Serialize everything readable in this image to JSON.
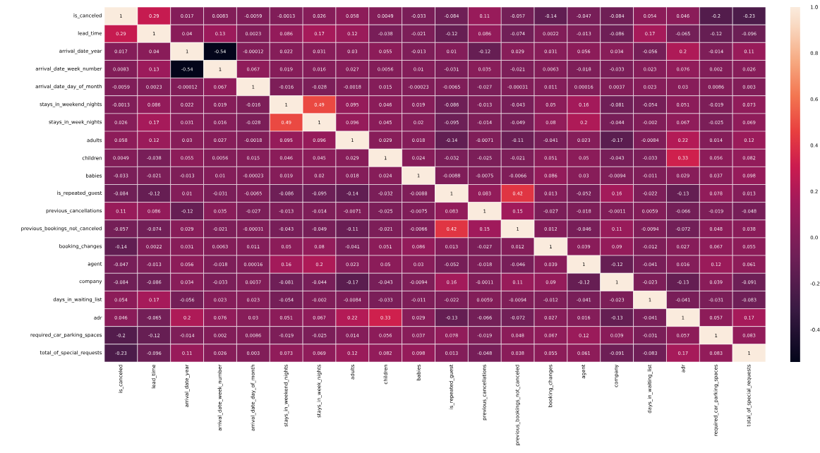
{
  "chart_data": {
    "type": "heatmap",
    "data_labels": true,
    "categories": [
      "is_canceled",
      "lead_time",
      "arrival_date_year",
      "arrival_date_week_number",
      "arrival_date_day_of_month",
      "stays_in_weekend_nights",
      "stays_in_week_nights",
      "adults",
      "children",
      "babies",
      "is_repeated_guest",
      "previous_cancellations",
      "previous_bookings_not_canceled",
      "booking_changes",
      "agent",
      "company",
      "days_in_waiting_list",
      "adr",
      "required_car_parking_spaces",
      "total_of_special_requests"
    ],
    "y_categories": [
      "is_canceled",
      "lead_time",
      "arrival_date_year",
      "arrival_date_week_number",
      "arrival_date_day_of_month",
      "stays_in_weekend_nights",
      "stays_in_week_nights",
      "adults",
      "children",
      "babies",
      "is_repeated_guest",
      "previous_cancellations",
      "previous_bookings_not_canceled",
      "booking_changes",
      "agent",
      "company",
      "days_in_waiting_list",
      "adr",
      "required_car_parking_spaces",
      "total_of_special_requests"
    ],
    "cells": [
      [
        1,
        0.29,
        0.017,
        0.0083,
        -0.0059,
        -0.0013,
        0.026,
        0.058,
        0.0049,
        -0.033,
        -0.084,
        0.11,
        -0.057,
        -0.14,
        -0.047,
        -0.084,
        0.054,
        0.046,
        -0.2,
        -0.23
      ],
      [
        0.29,
        1,
        0.04,
        0.13,
        0.0023,
        0.086,
        0.17,
        0.12,
        -0.038,
        -0.021,
        -0.12,
        0.086,
        -0.074,
        0.0022,
        -0.013,
        -0.086,
        0.17,
        -0.065,
        -0.12,
        -0.096
      ],
      [
        0.017,
        0.04,
        1,
        -0.54,
        -0.00012,
        0.022,
        0.031,
        0.03,
        0.055,
        -0.013,
        0.01,
        -0.12,
        0.029,
        0.031,
        0.056,
        0.034,
        -0.056,
        0.2,
        -0.014,
        0.11
      ],
      [
        0.0083,
        0.13,
        -0.54,
        1,
        0.067,
        0.019,
        0.016,
        0.027,
        0.0056,
        0.01,
        -0.031,
        0.035,
        -0.021,
        0.0063,
        -0.018,
        -0.033,
        0.023,
        0.076,
        0.002,
        0.026
      ],
      [
        -0.0059,
        0.0023,
        -0.00012,
        0.067,
        1,
        -0.016,
        -0.028,
        -0.0018,
        0.015,
        -0.00023,
        -0.0065,
        -0.027,
        -0.00031,
        0.011,
        0.00016,
        0.0037,
        0.023,
        0.03,
        0.0086,
        0.003
      ],
      [
        -0.0013,
        0.086,
        0.022,
        0.019,
        -0.016,
        1,
        0.49,
        0.095,
        0.046,
        0.019,
        -0.086,
        -0.013,
        -0.043,
        0.05,
        0.16,
        -0.081,
        -0.054,
        0.051,
        -0.019,
        0.073
      ],
      [
        0.026,
        0.17,
        0.031,
        0.016,
        -0.028,
        0.49,
        1,
        0.096,
        0.045,
        0.02,
        -0.095,
        -0.014,
        -0.049,
        0.08,
        0.2,
        -0.044,
        -0.002,
        0.067,
        -0.025,
        0.069
      ],
      [
        0.058,
        0.12,
        0.03,
        0.027,
        -0.0018,
        0.095,
        0.096,
        1,
        0.029,
        0.018,
        -0.14,
        -0.0071,
        -0.11,
        -0.041,
        0.023,
        -0.17,
        -0.0084,
        0.22,
        0.014,
        0.12
      ],
      [
        0.0049,
        -0.038,
        0.055,
        0.0056,
        0.015,
        0.046,
        0.045,
        0.029,
        1,
        0.024,
        -0.032,
        -0.025,
        -0.021,
        0.051,
        0.05,
        -0.043,
        -0.033,
        0.33,
        0.056,
        0.082
      ],
      [
        -0.033,
        -0.021,
        -0.013,
        0.01,
        -0.00023,
        0.019,
        0.02,
        0.018,
        0.024,
        1,
        -0.0088,
        -0.0075,
        -0.0066,
        0.086,
        0.03,
        -0.0094,
        -0.011,
        0.029,
        0.037,
        0.098
      ],
      [
        -0.084,
        -0.12,
        0.01,
        -0.031,
        -0.0065,
        -0.086,
        -0.095,
        -0.14,
        -0.032,
        -0.0088,
        1,
        0.083,
        0.42,
        0.013,
        -0.052,
        0.16,
        -0.022,
        -0.13,
        0.078,
        0.013
      ],
      [
        0.11,
        0.086,
        -0.12,
        0.035,
        -0.027,
        -0.013,
        -0.014,
        -0.0071,
        -0.025,
        -0.0075,
        0.083,
        1,
        0.15,
        -0.027,
        -0.018,
        -0.0011,
        0.0059,
        -0.066,
        -0.019,
        -0.048
      ],
      [
        -0.057,
        -0.074,
        0.029,
        -0.021,
        -0.00031,
        -0.043,
        -0.049,
        -0.11,
        -0.021,
        -0.0066,
        0.42,
        0.15,
        1,
        0.012,
        -0.046,
        0.11,
        -0.0094,
        -0.072,
        0.048,
        0.038
      ],
      [
        -0.14,
        0.0022,
        0.031,
        0.0063,
        0.011,
        0.05,
        0.08,
        -0.041,
        0.051,
        0.086,
        0.013,
        -0.027,
        0.012,
        1,
        0.039,
        0.09,
        -0.012,
        0.027,
        0.067,
        0.055
      ],
      [
        -0.047,
        -0.013,
        0.056,
        -0.018,
        0.00016,
        0.16,
        0.2,
        0.023,
        0.05,
        0.03,
        -0.052,
        -0.018,
        -0.046,
        0.039,
        1,
        -0.12,
        -0.041,
        0.016,
        0.12,
        0.061
      ],
      [
        -0.084,
        -0.086,
        0.034,
        -0.033,
        0.0037,
        -0.081,
        -0.044,
        -0.17,
        -0.043,
        -0.0094,
        0.16,
        -0.0011,
        0.11,
        0.09,
        -0.12,
        1,
        -0.023,
        -0.13,
        0.039,
        -0.091
      ],
      [
        0.054,
        0.17,
        -0.056,
        0.023,
        0.023,
        -0.054,
        -0.002,
        -0.0084,
        -0.033,
        -0.011,
        -0.022,
        0.0059,
        -0.0094,
        -0.012,
        -0.041,
        -0.023,
        1,
        -0.041,
        -0.031,
        -0.083
      ],
      [
        0.046,
        -0.065,
        0.2,
        0.076,
        0.03,
        0.051,
        0.067,
        0.22,
        0.33,
        0.029,
        -0.13,
        -0.066,
        -0.072,
        0.027,
        0.016,
        -0.13,
        -0.041,
        1,
        0.057,
        0.17
      ],
      [
        -0.2,
        -0.12,
        -0.014,
        0.002,
        0.0086,
        -0.019,
        -0.025,
        0.014,
        0.056,
        0.037,
        0.078,
        -0.019,
        0.048,
        0.067,
        0.12,
        0.039,
        -0.031,
        0.057,
        1,
        0.083
      ],
      [
        -0.23,
        -0.096,
        0.11,
        0.026,
        0.003,
        0.073,
        0.069,
        0.12,
        0.082,
        0.098,
        0.013,
        -0.048,
        0.038,
        0.055,
        0.061,
        -0.091,
        -0.083,
        0.17,
        0.083,
        1
      ]
    ],
    "clim": [
      -0.54,
      1
    ],
    "cticks": [
      {
        "value": -0.4,
        "label": "-0.4"
      },
      {
        "value": -0.2,
        "label": "-0.2"
      },
      {
        "value": 0,
        "label": "0.0"
      },
      {
        "value": 0.2,
        "label": "0.2"
      },
      {
        "value": 0.4,
        "label": "0.4"
      },
      {
        "value": 0.6,
        "label": "0.6"
      },
      {
        "value": 0.8,
        "label": "0.8"
      },
      {
        "value": 1,
        "label": "1.0"
      }
    ]
  }
}
